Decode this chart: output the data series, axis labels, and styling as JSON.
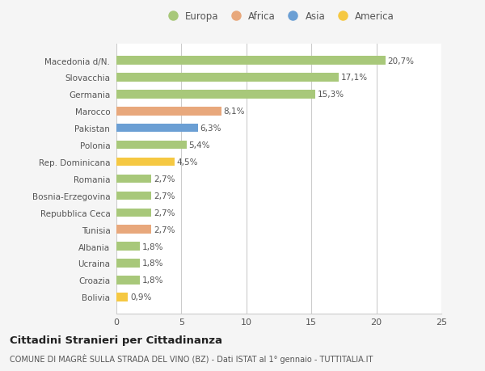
{
  "categories": [
    "Bolivia",
    "Croazia",
    "Ucraina",
    "Albania",
    "Tunisia",
    "Repubblica Ceca",
    "Bosnia-Erzegovina",
    "Romania",
    "Rep. Dominicana",
    "Polonia",
    "Pakistan",
    "Marocco",
    "Germania",
    "Slovacchia",
    "Macedonia d/N."
  ],
  "values": [
    0.9,
    1.8,
    1.8,
    1.8,
    2.7,
    2.7,
    2.7,
    2.7,
    4.5,
    5.4,
    6.3,
    8.1,
    15.3,
    17.1,
    20.7
  ],
  "labels": [
    "0,9%",
    "1,8%",
    "1,8%",
    "1,8%",
    "2,7%",
    "2,7%",
    "2,7%",
    "2,7%",
    "4,5%",
    "5,4%",
    "6,3%",
    "8,1%",
    "15,3%",
    "17,1%",
    "20,7%"
  ],
  "colors": [
    "#f5c842",
    "#a8c87a",
    "#a8c87a",
    "#a8c87a",
    "#e8a87c",
    "#a8c87a",
    "#a8c87a",
    "#a8c87a",
    "#f5c842",
    "#a8c87a",
    "#6b9fd4",
    "#e8a87c",
    "#a8c87a",
    "#a8c87a",
    "#a8c87a"
  ],
  "legend_labels": [
    "Europa",
    "Africa",
    "Asia",
    "America"
  ],
  "legend_colors": [
    "#a8c87a",
    "#e8a87c",
    "#6b9fd4",
    "#f5c842"
  ],
  "xlim": [
    0,
    25
  ],
  "xticks": [
    0,
    5,
    10,
    15,
    20,
    25
  ],
  "title": "Cittadini Stranieri per Cittadinanza",
  "subtitle": "COMUNE DI MAGRÈ SULLA STRADA DEL VINO (BZ) - Dati ISTAT al 1° gennaio - TUTTITALIA.IT",
  "bg_color": "#f5f5f5",
  "bar_bg_color": "#ffffff",
  "grid_color": "#cccccc",
  "text_color": "#555555"
}
